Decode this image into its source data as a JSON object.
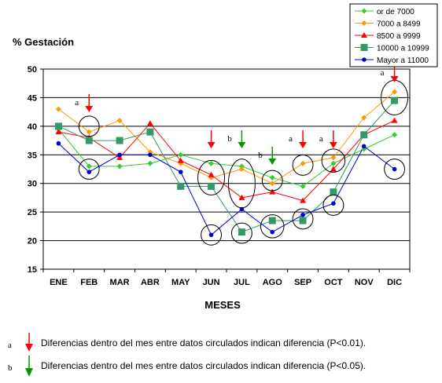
{
  "chart_data": {
    "type": "line",
    "ylabel": "% Gestación",
    "xlabel": "MESES",
    "ylim": [
      15,
      50
    ],
    "yticks": [
      15,
      20,
      25,
      30,
      35,
      40,
      45,
      50
    ],
    "grid": true,
    "legend_position": "top-right",
    "categories": [
      "ENE",
      "FEB",
      "MAR",
      "ABR",
      "MAY",
      "JUN",
      "JUL",
      "AGO",
      "SEP",
      "OCT",
      "NOV",
      "DIC"
    ],
    "series": [
      {
        "name": "or de 7000",
        "color": "#33cc33",
        "marker": "diamond",
        "values": [
          39.5,
          33.0,
          33.0,
          33.5,
          35.0,
          33.5,
          33.0,
          31.0,
          29.5,
          33.5,
          36.0,
          38.5
        ]
      },
      {
        "name": "7000 a 8499",
        "color": "#ff9900",
        "marker": "diamond",
        "values": [
          43.0,
          39.0,
          41.0,
          35.5,
          33.5,
          31.0,
          32.5,
          30.0,
          33.5,
          34.5,
          41.5,
          46.0
        ]
      },
      {
        "name": "8500 a 9999",
        "color": "#ff0000",
        "marker": "triangle",
        "values": [
          39.0,
          38.0,
          34.5,
          40.5,
          34.0,
          31.5,
          27.5,
          28.5,
          27.0,
          32.5,
          38.5,
          41.0
        ]
      },
      {
        "name": "10000 a 10999",
        "color": "#339966",
        "marker": "square",
        "values": [
          40.0,
          37.5,
          37.5,
          39.0,
          29.5,
          29.5,
          21.5,
          23.5,
          23.5,
          28.5,
          38.5,
          44.5
        ]
      },
      {
        "name": "Mayor a 11000",
        "color": "#0000cc",
        "marker": "circle",
        "values": [
          37.0,
          32.0,
          35.0,
          35.0,
          32.0,
          21.0,
          25.5,
          21.5,
          24.5,
          26.5,
          36.5,
          32.5
        ]
      }
    ],
    "annotations": [
      {
        "month": "FEB",
        "letter": "a",
        "type": "a"
      },
      {
        "month": "JUN",
        "letter": "",
        "type": "a"
      },
      {
        "month": "JUL",
        "letter": "b",
        "type": "b"
      },
      {
        "month": "AGO",
        "letter": "b",
        "type": "b"
      },
      {
        "month": "SEP",
        "letter": "a",
        "type": "a"
      },
      {
        "month": "OCT",
        "letter": "a",
        "type": "a"
      },
      {
        "month": "DIC",
        "letter": "a",
        "type": "a"
      }
    ],
    "circles": [
      {
        "month": "FEB",
        "value": 40.0,
        "h": 3.0
      },
      {
        "month": "FEB",
        "value": 32.5,
        "h": 3.0
      },
      {
        "month": "JUN",
        "value": 31.0,
        "h": 5.5
      },
      {
        "month": "JUN",
        "value": 21.0,
        "h": 3.0
      },
      {
        "month": "JUL",
        "value": 30.0,
        "h": 8.0
      },
      {
        "month": "JUL",
        "value": 21.3,
        "h": 3.0
      },
      {
        "month": "AGO",
        "value": 30.5,
        "h": 3.0
      },
      {
        "month": "AGO",
        "value": 22.5,
        "h": 3.5
      },
      {
        "month": "SEP",
        "value": 33.2,
        "h": 3.0
      },
      {
        "month": "SEP",
        "value": 23.8,
        "h": 3.0
      },
      {
        "month": "OCT",
        "value": 34.0,
        "h": 3.5
      },
      {
        "month": "OCT",
        "value": 26.2,
        "h": 3.0
      },
      {
        "month": "DIC",
        "value": 45.0,
        "h": 5.5
      },
      {
        "month": "DIC",
        "value": 32.5,
        "h": 3.0
      }
    ]
  },
  "notes": [
    {
      "letter": "a",
      "arrow_color": "#ff0000",
      "text": "Diferencias dentro del mes entre datos circulados indican diferencia  (P<0.01)."
    },
    {
      "letter": "b",
      "arrow_color": "#009900",
      "text": "Diferencias dentro del mes entre datos circulados indican diferencia  (P<0.05)."
    }
  ]
}
